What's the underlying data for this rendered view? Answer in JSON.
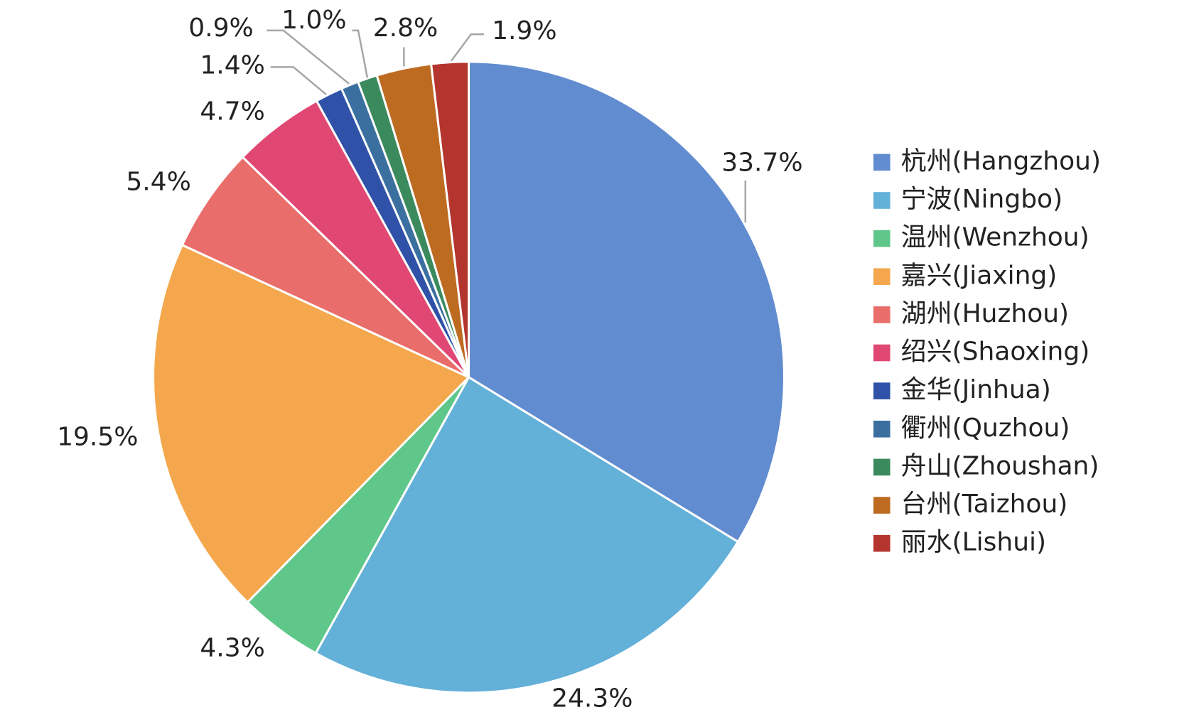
{
  "chart_data": {
    "type": "pie",
    "categories": [
      "杭州(Hangzhou)",
      "宁波(Ningbo)",
      "温州(Wenzhou)",
      "嘉兴(Jiaxing)",
      "湖州(Huzhou)",
      "绍兴(Shaoxing)",
      "金华(Jinhua)",
      "衢州(Quzhou)",
      "舟山(Zhoushan)",
      "台州(Taizhou)",
      "丽水(Lishui)"
    ],
    "values": [
      33.7,
      24.3,
      4.3,
      19.5,
      5.4,
      4.7,
      1.4,
      0.9,
      1.0,
      2.8,
      1.9
    ],
    "value_labels": [
      "33.7%",
      "24.3%",
      "4.3%",
      "19.5%",
      "5.4%",
      "4.7%",
      "1.4%",
      "0.9%",
      "1.0%",
      "2.8%",
      "1.9%"
    ],
    "colors": [
      "#628cd0",
      "#63b0d8",
      "#5fc78a",
      "#f4a74c",
      "#e96d6a",
      "#e04873",
      "#2f52a8",
      "#3a6fa0",
      "#3b8a5e",
      "#be6b22",
      "#b3352e"
    ],
    "legend": "right"
  }
}
